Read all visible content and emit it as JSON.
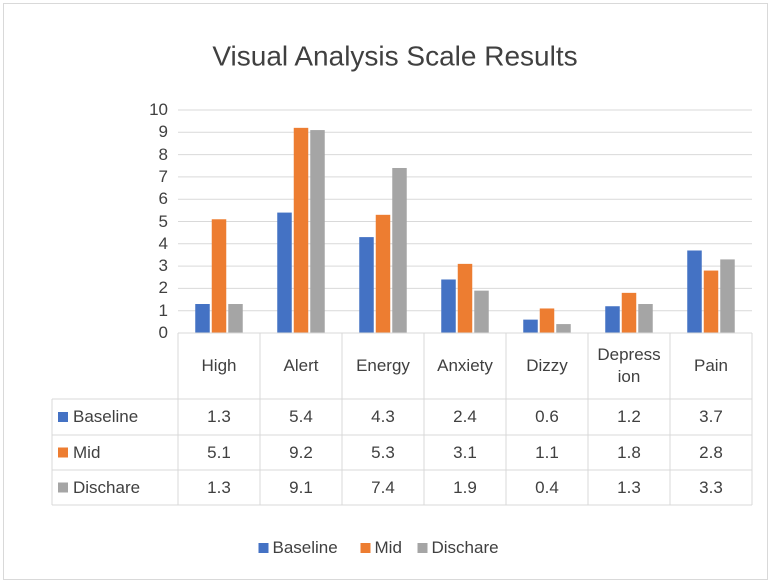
{
  "chart_data": {
    "type": "bar",
    "title": "Visual Analysis Scale Results",
    "categories": [
      "High",
      "Alert",
      "Energy",
      "Anxiety",
      "Dizzy",
      "Depression",
      "Pain"
    ],
    "series": [
      {
        "name": "Baseline",
        "color": "#4472c4",
        "values": [
          1.3,
          5.4,
          4.3,
          2.4,
          0.6,
          1.2,
          3.7
        ]
      },
      {
        "name": "Mid",
        "color": "#ed7d31",
        "values": [
          5.1,
          9.2,
          5.3,
          3.1,
          1.1,
          1.8,
          2.8
        ]
      },
      {
        "name": "Dischare",
        "color": "#a5a5a5",
        "values": [
          1.3,
          9.1,
          7.4,
          1.9,
          0.4,
          1.3,
          3.3
        ]
      }
    ],
    "ylim": [
      0,
      10
    ],
    "yticks": [
      0,
      1,
      2,
      3,
      4,
      5,
      6,
      7,
      8,
      9,
      10
    ],
    "grid": true,
    "legend": "bottom",
    "data_table": true
  }
}
